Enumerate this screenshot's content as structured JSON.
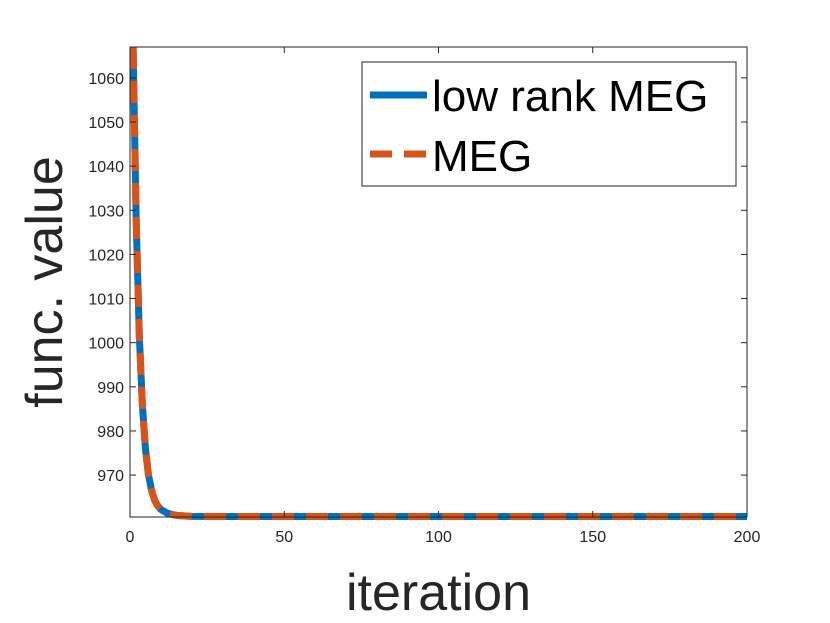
{
  "chart_data": {
    "type": "line",
    "xlabel": "iteration",
    "ylabel": "func. value",
    "xlim": [
      0,
      200
    ],
    "ylim": [
      960.5,
      1067
    ],
    "xticks": [
      0,
      50,
      100,
      150,
      200
    ],
    "yticks": [
      970,
      980,
      990,
      1000,
      1010,
      1020,
      1030,
      1040,
      1050,
      1060
    ],
    "grid": false,
    "legend_position": "top-right",
    "series": [
      {
        "name": "low rank MEG",
        "color": "#0072BD",
        "style": "solid",
        "x": [
          1,
          2,
          3,
          4,
          5,
          6,
          7,
          8,
          9,
          10,
          12,
          14,
          16,
          20,
          30,
          50,
          100,
          150,
          200
        ],
        "y": [
          1067,
          1028,
          1002,
          986,
          976,
          970,
          966.5,
          964.3,
          963,
          962.2,
          961.4,
          961,
          960.8,
          960.65,
          960.6,
          960.6,
          960.6,
          960.6,
          960.6
        ]
      },
      {
        "name": "MEG",
        "color": "#D95319",
        "style": "dashed",
        "x": [
          1,
          2,
          3,
          4,
          5,
          6,
          7,
          8,
          9,
          10,
          12,
          14,
          16,
          20,
          30,
          50,
          100,
          150,
          200
        ],
        "y": [
          1067,
          1028,
          1002,
          986,
          976,
          970,
          966.5,
          964.3,
          963,
          962.2,
          961.4,
          961,
          960.8,
          960.65,
          960.6,
          960.6,
          960.6,
          960.6,
          960.6
        ]
      }
    ]
  }
}
